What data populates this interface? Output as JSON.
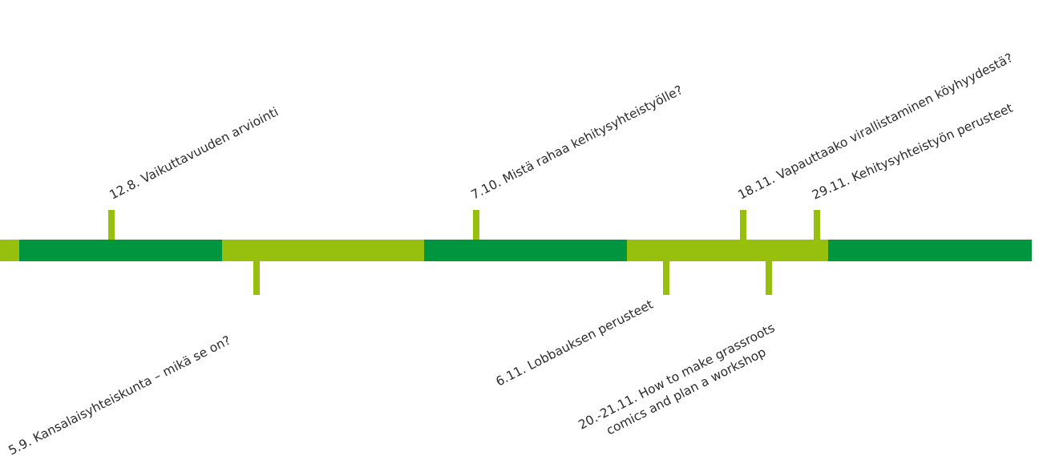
{
  "colors": {
    "dark_green": "#00963f",
    "light_green": "#97bf0d",
    "text": "#2b2b2b"
  },
  "events": [
    {
      "date": "12.8.",
      "title": "Vaikuttavuuden arviointi",
      "position": "above"
    },
    {
      "date": "5.9.",
      "title": "Kansalaisyhteiskunta – mikä se on?",
      "position": "below"
    },
    {
      "date": "7.10.",
      "title": "Mistä rahaa kehitysyhteistyölle?",
      "position": "above"
    },
    {
      "date": "6.11.",
      "title": "Lobbauksen perusteet",
      "position": "below"
    },
    {
      "date": "18.11.",
      "title": "Vapauttaako virallistaminen köyhyydestä?",
      "position": "above"
    },
    {
      "date": "20.-21.11.",
      "title": "How to make grassroots",
      "title_line2": "comics and plan a workshop",
      "position": "below"
    },
    {
      "date": "29.11.",
      "title": "Kehitysyhteistyön perusteet",
      "position": "above"
    }
  ]
}
